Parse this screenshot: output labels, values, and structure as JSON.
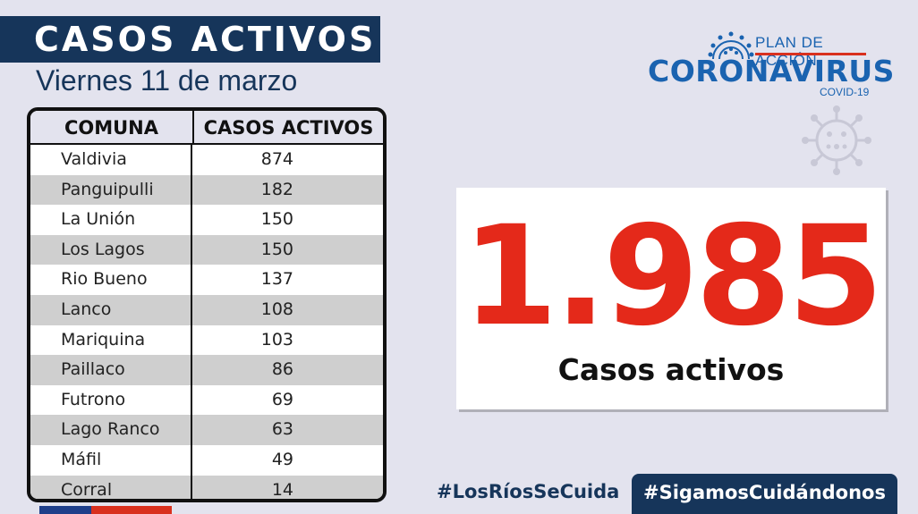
{
  "header": {
    "title": "CASOS ACTIVOS",
    "date": "Viernes 11 de marzo"
  },
  "table": {
    "columns": [
      "COMUNA",
      "CASOS ACTIVOS"
    ],
    "rows": [
      {
        "comuna": "Valdivia",
        "casos": "874"
      },
      {
        "comuna": "Panguipulli",
        "casos": "182"
      },
      {
        "comuna": "La Unión",
        "casos": "150"
      },
      {
        "comuna": "Los Lagos",
        "casos": "150"
      },
      {
        "comuna": "Rio Bueno",
        "casos": "137"
      },
      {
        "comuna": "Lanco",
        "casos": "108"
      },
      {
        "comuna": "Mariquina",
        "casos": "103"
      },
      {
        "comuna": "Paillaco",
        "casos": "86"
      },
      {
        "comuna": "Futrono",
        "casos": "69"
      },
      {
        "comuna": "Lago Ranco",
        "casos": "63"
      },
      {
        "comuna": "Máfil",
        "casos": "49"
      },
      {
        "comuna": "Corral",
        "casos": "14"
      }
    ]
  },
  "logo": {
    "plan": "PLAN DE ACCIÓN",
    "name": "CORONAVIRUS",
    "sub": "COVID-19"
  },
  "summary": {
    "total": "1.985",
    "label": "Casos activos"
  },
  "hashtags": {
    "regional": "#LosRíosSeCuida",
    "national": "#SigamosCuidándonos"
  },
  "colors": {
    "navy": "#16355a",
    "red": "#e4291a",
    "blue": "#1a63b0",
    "background": "#e3e3ee"
  }
}
